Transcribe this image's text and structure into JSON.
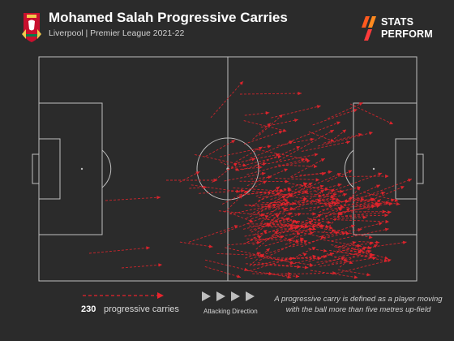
{
  "header": {
    "title": "Mohamed Salah Progressive Carries",
    "subtitle": "Liverpool | Premier League 2021-22"
  },
  "brand": {
    "line1": "STATS",
    "line2": "PERFORM",
    "logo_icon": "stats-perform-slash-logo",
    "crest_icon": "liverpool-crest"
  },
  "legend": {
    "count": "230",
    "count_label": "progressive carries",
    "direction_label": "Attacking Direction",
    "note": "A progressive carry is defined as a player moving with the ball more than five metres up-field"
  },
  "colors": {
    "background": "#2b2b2b",
    "pitch_lines": "#bfbfbf",
    "arrow": "#e8242c",
    "direction_arrows": "#bdbdbd"
  }
}
